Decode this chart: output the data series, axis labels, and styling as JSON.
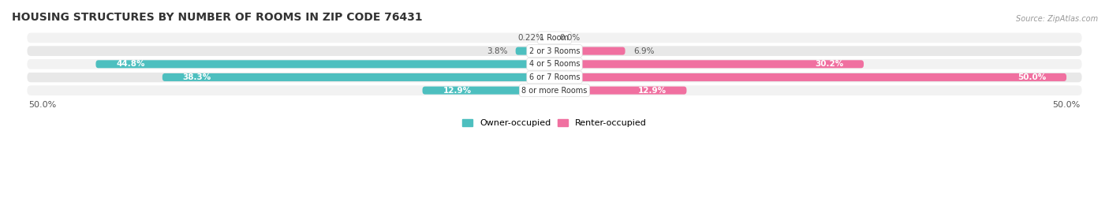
{
  "title": "HOUSING STRUCTURES BY NUMBER OF ROOMS IN ZIP CODE 76431",
  "source": "Source: ZipAtlas.com",
  "categories": [
    "1 Room",
    "2 or 3 Rooms",
    "4 or 5 Rooms",
    "6 or 7 Rooms",
    "8 or more Rooms"
  ],
  "owner_values": [
    0.22,
    3.8,
    44.8,
    38.3,
    12.9
  ],
  "renter_values": [
    0.0,
    6.9,
    30.2,
    50.0,
    12.9
  ],
  "owner_color": "#4DBFBF",
  "renter_color": "#F070A0",
  "owner_label": "Owner-occupied",
  "renter_label": "Renter-occupied",
  "row_bg_even": "#F2F2F2",
  "row_bg_odd": "#E8E8E8",
  "max_value": 50.0,
  "title_fontsize": 10,
  "label_fontsize": 7.8,
  "axis_fontsize": 8.0
}
